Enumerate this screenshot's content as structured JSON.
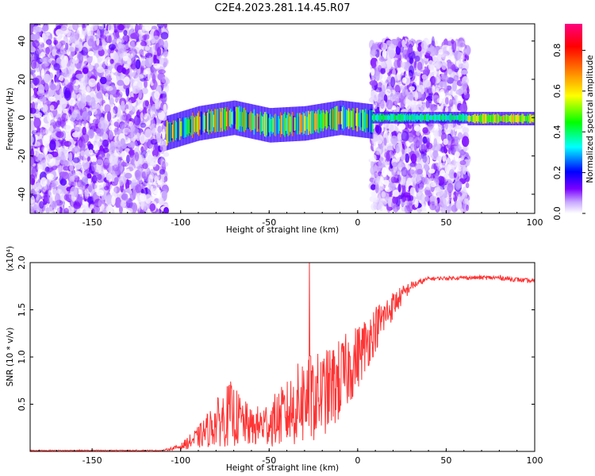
{
  "title": "C2E4.2023.281.14.45.R07",
  "chart_data": [
    {
      "type": "heatmap",
      "name": "spectrogram",
      "xlabel": "Height of straight line (km)",
      "ylabel": "Frequency (Hz)",
      "xlim": [
        -185,
        100
      ],
      "ylim": [
        -50,
        49
      ],
      "x_ticks": [
        -150,
        -100,
        -50,
        0,
        50,
        100
      ],
      "y_ticks": [
        -40,
        -20,
        0,
        20,
        40
      ],
      "colorbar": {
        "label": "Normalized spectral amplitude",
        "range": [
          0,
          0.93
        ],
        "ticks": [
          0.0,
          0.2,
          0.4,
          0.6,
          0.8
        ],
        "colormap": [
          "#ffffff",
          "#7a00ff",
          "#0000ff",
          "#00ffff",
          "#00ff00",
          "#ffff00",
          "#ff8000",
          "#ff0000",
          "#ff0080"
        ]
      },
      "regions": [
        {
          "x": [
            -185,
            -108
          ],
          "y": [
            -50,
            49
          ],
          "description_level": "noise",
          "amplitude": [
            0.0,
            0.15
          ]
        },
        {
          "x": [
            -108,
            8
          ],
          "y": [
            -12,
            6
          ],
          "description_level": "signal-band",
          "amplitude": [
            0.2,
            0.75
          ],
          "center_freq": [
            [
              -108,
              -8
            ],
            [
              -90,
              -3
            ],
            [
              -70,
              0
            ],
            [
              -50,
              -4
            ],
            [
              -30,
              -3
            ],
            [
              -10,
              0
            ],
            [
              8,
              -2
            ]
          ]
        },
        {
          "x": [
            8,
            62
          ],
          "y": [
            -48,
            40
          ],
          "description_level": "noise",
          "amplitude": [
            0.0,
            0.15
          ]
        },
        {
          "x": [
            8,
            62
          ],
          "y": [
            -3,
            3
          ],
          "description_level": "signal-band",
          "amplitude": [
            0.3,
            0.45
          ]
        },
        {
          "x": [
            62,
            100
          ],
          "y": [
            -4,
            3
          ],
          "description_level": "signal-band",
          "amplitude": [
            0.4,
            0.65
          ]
        }
      ]
    },
    {
      "type": "line",
      "name": "snr",
      "xlabel": "Height of straight line (km)",
      "ylabel": "SNR (10 * v/v)",
      "y_multiplier": "(x10⁴)",
      "xlim": [
        -185,
        100
      ],
      "ylim": [
        0,
        2.0
      ],
      "x_ticks": [
        -150,
        -100,
        -50,
        0,
        50,
        100
      ],
      "y_ticks": [
        0.5,
        1.0,
        1.5,
        2.0
      ],
      "color": "#ff3333",
      "envelope": [
        {
          "x": -185,
          "base": 0.01,
          "noise": 0.005
        },
        {
          "x": -110,
          "base": 0.01,
          "noise": 0.005
        },
        {
          "x": -100,
          "base": 0.05,
          "noise": 0.03
        },
        {
          "x": -90,
          "base": 0.15,
          "noise": 0.12
        },
        {
          "x": -80,
          "base": 0.3,
          "noise": 0.25
        },
        {
          "x": -72,
          "base": 0.4,
          "noise": 0.35
        },
        {
          "x": -60,
          "base": 0.25,
          "noise": 0.2
        },
        {
          "x": -50,
          "base": 0.3,
          "noise": 0.25
        },
        {
          "x": -40,
          "base": 0.4,
          "noise": 0.35
        },
        {
          "x": -30,
          "base": 0.55,
          "noise": 0.5
        },
        {
          "x": -20,
          "base": 0.6,
          "noise": 0.45
        },
        {
          "x": -10,
          "base": 0.75,
          "noise": 0.45
        },
        {
          "x": 0,
          "base": 1.0,
          "noise": 0.35
        },
        {
          "x": 10,
          "base": 1.3,
          "noise": 0.25
        },
        {
          "x": 20,
          "base": 1.55,
          "noise": 0.15
        },
        {
          "x": 30,
          "base": 1.75,
          "noise": 0.05
        },
        {
          "x": 40,
          "base": 1.83,
          "noise": 0.02
        },
        {
          "x": 60,
          "base": 1.84,
          "noise": 0.02
        },
        {
          "x": 80,
          "base": 1.84,
          "noise": 0.025
        },
        {
          "x": 100,
          "base": 1.8,
          "noise": 0.025
        }
      ]
    }
  ]
}
